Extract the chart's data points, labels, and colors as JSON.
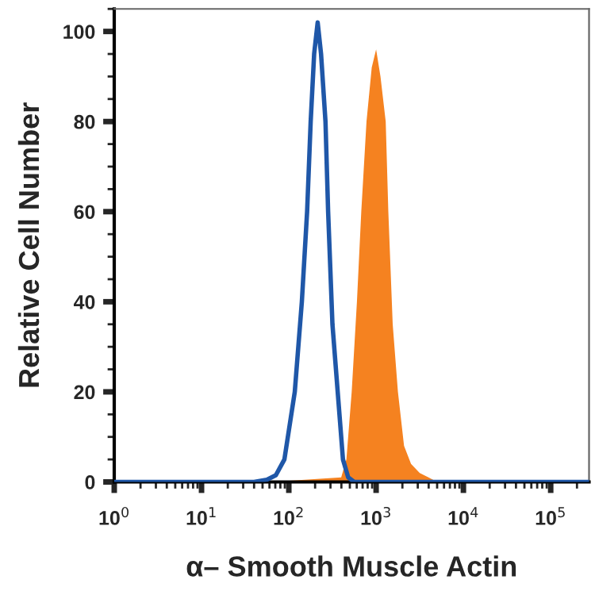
{
  "chart_data": {
    "type": "area",
    "xlabel": "α– Smooth Muscle Actin",
    "ylabel": "Relative Cell Number",
    "log": "x",
    "xlim": [
      1,
      275000
    ],
    "ylim": [
      0,
      105
    ],
    "xticks": [
      {
        "value": 1,
        "label": "10$^{0}$"
      },
      {
        "value": 10,
        "label": "10$^{1}$"
      },
      {
        "value": 100,
        "label": "10$^{2}$"
      },
      {
        "value": 1000,
        "label": "10$^{3}$"
      },
      {
        "value": 10000,
        "label": "10$^{4}$"
      },
      {
        "value": 100000,
        "label": "10$^{5}$"
      }
    ],
    "yticks": [
      0,
      20,
      40,
      60,
      80,
      100
    ],
    "grid": false,
    "legend": false,
    "series": [
      {
        "color": "#f58220",
        "x": [
          1,
          63,
          398,
          457,
          525,
          603,
          676,
          776,
          891,
          1000,
          1122,
          1288,
          1380,
          1549,
          1778,
          2089,
          2512,
          3162,
          3981,
          5012,
          275000
        ],
        "values": [
          0,
          0,
          1,
          5,
          20,
          40,
          60,
          80,
          92,
          96,
          90,
          80,
          60,
          35,
          20,
          8,
          4,
          2,
          1,
          0,
          0
        ]
      },
      {
        "type": "line",
        "color": "#1f57a8",
        "x": [
          1,
          40,
          56,
          71,
          89,
          117,
          141,
          162,
          178,
          195,
          214,
          234,
          263,
          282,
          316,
          363,
          417,
          479,
          562,
          275000
        ],
        "values": [
          0,
          0,
          0.5,
          1.5,
          5,
          20,
          40,
          60,
          80,
          95,
          102,
          95,
          80,
          60,
          35,
          20,
          5,
          1,
          0,
          0
        ]
      }
    ]
  }
}
